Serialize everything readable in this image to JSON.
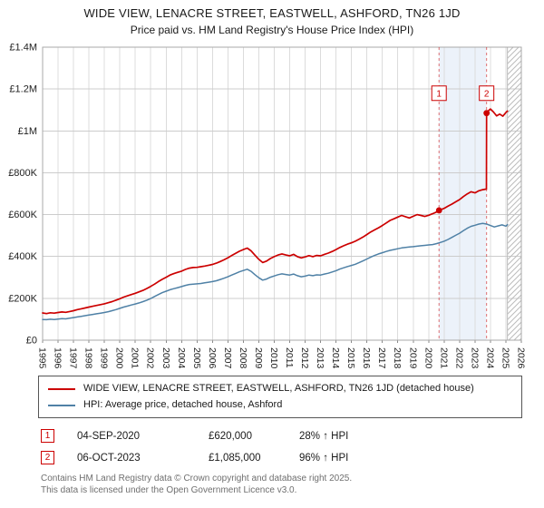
{
  "chart_data": {
    "type": "line",
    "title": "WIDE VIEW, LENACRE STREET, EASTWELL, ASHFORD, TN26 1JD",
    "subtitle": "Price paid vs. HM Land Registry's House Price Index (HPI)",
    "currency": "GBP",
    "values_unit": "thousands_of_pounds",
    "xlim": [
      1995,
      2026
    ],
    "ylim": [
      0,
      1400
    ],
    "grid": true,
    "legend_position": "bottom",
    "x_ticks": [
      1995,
      1996,
      1997,
      1998,
      1999,
      2000,
      2001,
      2002,
      2003,
      2004,
      2005,
      2006,
      2007,
      2008,
      2009,
      2010,
      2011,
      2012,
      2013,
      2014,
      2015,
      2016,
      2017,
      2018,
      2019,
      2020,
      2021,
      2022,
      2023,
      2024,
      2025,
      2026
    ],
    "y_ticks": [
      {
        "v": 0,
        "label": "£0"
      },
      {
        "v": 200,
        "label": "£200K"
      },
      {
        "v": 400,
        "label": "£400K"
      },
      {
        "v": 600,
        "label": "£600K"
      },
      {
        "v": 800,
        "label": "£800K"
      },
      {
        "v": 1000,
        "label": "£1M"
      },
      {
        "v": 1200,
        "label": "£1.2M"
      },
      {
        "v": 1400,
        "label": "£1.4M"
      }
    ],
    "shaded_region": {
      "from": 2020.67,
      "to": 2023.75,
      "color": "#dde8f6"
    },
    "hatched_region": {
      "from": 2025.1,
      "to": 2026
    },
    "sale_markers": [
      {
        "n": "1",
        "x": 2020.67,
        "y": 620,
        "label_y": 1180
      },
      {
        "n": "2",
        "x": 2023.75,
        "y": 1085,
        "label_y": 1180
      }
    ],
    "series": [
      {
        "name": "WIDE VIEW, LENACRE STREET, EASTWELL, ASHFORD, TN26 1JD (detached house)",
        "color": "#cc0000",
        "points": [
          [
            1995,
            130
          ],
          [
            1995.25,
            127
          ],
          [
            1995.5,
            131
          ],
          [
            1995.75,
            129
          ],
          [
            1996,
            132
          ],
          [
            1996.25,
            135
          ],
          [
            1996.5,
            133
          ],
          [
            1996.75,
            137
          ],
          [
            1997,
            141
          ],
          [
            1997.25,
            146
          ],
          [
            1997.5,
            150
          ],
          [
            1997.75,
            154
          ],
          [
            1998,
            158
          ],
          [
            1998.25,
            162
          ],
          [
            1998.5,
            166
          ],
          [
            1998.75,
            170
          ],
          [
            1999,
            174
          ],
          [
            1999.25,
            179
          ],
          [
            1999.5,
            184
          ],
          [
            1999.75,
            191
          ],
          [
            2000,
            198
          ],
          [
            2000.25,
            206
          ],
          [
            2000.5,
            212
          ],
          [
            2000.75,
            218
          ],
          [
            2001,
            224
          ],
          [
            2001.25,
            231
          ],
          [
            2001.5,
            238
          ],
          [
            2001.75,
            247
          ],
          [
            2002,
            257
          ],
          [
            2002.25,
            268
          ],
          [
            2002.5,
            280
          ],
          [
            2002.75,
            291
          ],
          [
            2003,
            301
          ],
          [
            2003.25,
            311
          ],
          [
            2003.5,
            318
          ],
          [
            2003.75,
            324
          ],
          [
            2004,
            330
          ],
          [
            2004.25,
            338
          ],
          [
            2004.5,
            344
          ],
          [
            2004.75,
            347
          ],
          [
            2005,
            348
          ],
          [
            2005.25,
            351
          ],
          [
            2005.5,
            354
          ],
          [
            2005.75,
            358
          ],
          [
            2006,
            362
          ],
          [
            2006.25,
            368
          ],
          [
            2006.5,
            376
          ],
          [
            2006.75,
            384
          ],
          [
            2007,
            394
          ],
          [
            2007.25,
            405
          ],
          [
            2007.5,
            415
          ],
          [
            2007.75,
            425
          ],
          [
            2008,
            433
          ],
          [
            2008.25,
            440
          ],
          [
            2008.5,
            427
          ],
          [
            2008.75,
            406
          ],
          [
            2009,
            386
          ],
          [
            2009.25,
            371
          ],
          [
            2009.5,
            378
          ],
          [
            2009.75,
            390
          ],
          [
            2010,
            399
          ],
          [
            2010.25,
            407
          ],
          [
            2010.5,
            412
          ],
          [
            2010.75,
            407
          ],
          [
            2011,
            403
          ],
          [
            2011.25,
            410
          ],
          [
            2011.5,
            399
          ],
          [
            2011.75,
            393
          ],
          [
            2012,
            398
          ],
          [
            2012.25,
            404
          ],
          [
            2012.5,
            399
          ],
          [
            2012.75,
            405
          ],
          [
            2013,
            403
          ],
          [
            2013.25,
            410
          ],
          [
            2013.5,
            416
          ],
          [
            2013.75,
            424
          ],
          [
            2014,
            433
          ],
          [
            2014.25,
            443
          ],
          [
            2014.5,
            451
          ],
          [
            2014.75,
            459
          ],
          [
            2015,
            465
          ],
          [
            2015.25,
            473
          ],
          [
            2015.5,
            483
          ],
          [
            2015.75,
            493
          ],
          [
            2016,
            505
          ],
          [
            2016.25,
            517
          ],
          [
            2016.5,
            527
          ],
          [
            2016.75,
            537
          ],
          [
            2017,
            548
          ],
          [
            2017.25,
            560
          ],
          [
            2017.5,
            572
          ],
          [
            2017.75,
            580
          ],
          [
            2018,
            588
          ],
          [
            2018.25,
            596
          ],
          [
            2018.5,
            590
          ],
          [
            2018.75,
            584
          ],
          [
            2019,
            592
          ],
          [
            2019.25,
            600
          ],
          [
            2019.5,
            596
          ],
          [
            2019.75,
            591
          ],
          [
            2020,
            597
          ],
          [
            2020.25,
            604
          ],
          [
            2020.5,
            612
          ],
          [
            2020.67,
            620
          ],
          [
            2021,
            630
          ],
          [
            2021.25,
            640
          ],
          [
            2021.5,
            650
          ],
          [
            2021.75,
            661
          ],
          [
            2022,
            672
          ],
          [
            2022.25,
            686
          ],
          [
            2022.5,
            699
          ],
          [
            2022.75,
            709
          ],
          [
            2023,
            704
          ],
          [
            2023.25,
            714
          ],
          [
            2023.5,
            719
          ],
          [
            2023.74,
            722
          ],
          [
            2023.75,
            1085
          ],
          [
            2023.85,
            1095
          ],
          [
            2024,
            1105
          ],
          [
            2024.2,
            1090
          ],
          [
            2024.4,
            1072
          ],
          [
            2024.6,
            1080
          ],
          [
            2024.8,
            1070
          ],
          [
            2025,
            1088
          ],
          [
            2025.1,
            1095
          ]
        ]
      },
      {
        "name": "HPI: Average price, detached house, Ashford",
        "color": "#4f81a6",
        "points": [
          [
            1995,
            99
          ],
          [
            1995.25,
            98
          ],
          [
            1995.5,
            100
          ],
          [
            1995.75,
            99
          ],
          [
            1996,
            101
          ],
          [
            1996.25,
            103
          ],
          [
            1996.5,
            102
          ],
          [
            1996.75,
            105
          ],
          [
            1997,
            108
          ],
          [
            1997.25,
            111
          ],
          [
            1997.5,
            114
          ],
          [
            1997.75,
            117
          ],
          [
            1998,
            120
          ],
          [
            1998.25,
            123
          ],
          [
            1998.5,
            126
          ],
          [
            1998.75,
            129
          ],
          [
            1999,
            132
          ],
          [
            1999.25,
            136
          ],
          [
            1999.5,
            141
          ],
          [
            1999.75,
            146
          ],
          [
            2000,
            152
          ],
          [
            2000.25,
            158
          ],
          [
            2000.5,
            163
          ],
          [
            2000.75,
            168
          ],
          [
            2001,
            173
          ],
          [
            2001.25,
            178
          ],
          [
            2001.5,
            184
          ],
          [
            2001.75,
            191
          ],
          [
            2002,
            199
          ],
          [
            2002.25,
            209
          ],
          [
            2002.5,
            218
          ],
          [
            2002.75,
            227
          ],
          [
            2003,
            234
          ],
          [
            2003.25,
            241
          ],
          [
            2003.5,
            246
          ],
          [
            2003.75,
            251
          ],
          [
            2004,
            256
          ],
          [
            2004.25,
            262
          ],
          [
            2004.5,
            266
          ],
          [
            2004.75,
            268
          ],
          [
            2005,
            269
          ],
          [
            2005.25,
            271
          ],
          [
            2005.5,
            274
          ],
          [
            2005.75,
            277
          ],
          [
            2006,
            280
          ],
          [
            2006.25,
            284
          ],
          [
            2006.5,
            290
          ],
          [
            2006.75,
            296
          ],
          [
            2007,
            303
          ],
          [
            2007.25,
            311
          ],
          [
            2007.5,
            319
          ],
          [
            2007.75,
            327
          ],
          [
            2008,
            333
          ],
          [
            2008.25,
            339
          ],
          [
            2008.5,
            329
          ],
          [
            2008.75,
            313
          ],
          [
            2009,
            298
          ],
          [
            2009.25,
            287
          ],
          [
            2009.5,
            292
          ],
          [
            2009.75,
            301
          ],
          [
            2010,
            307
          ],
          [
            2010.25,
            313
          ],
          [
            2010.5,
            317
          ],
          [
            2010.75,
            314
          ],
          [
            2011,
            311
          ],
          [
            2011.25,
            316
          ],
          [
            2011.5,
            308
          ],
          [
            2011.75,
            303
          ],
          [
            2012,
            306
          ],
          [
            2012.25,
            311
          ],
          [
            2012.5,
            308
          ],
          [
            2012.75,
            312
          ],
          [
            2013,
            311
          ],
          [
            2013.25,
            316
          ],
          [
            2013.5,
            320
          ],
          [
            2013.75,
            326
          ],
          [
            2014,
            332
          ],
          [
            2014.25,
            340
          ],
          [
            2014.5,
            346
          ],
          [
            2014.75,
            352
          ],
          [
            2015,
            357
          ],
          [
            2015.25,
            363
          ],
          [
            2015.5,
            371
          ],
          [
            2015.75,
            379
          ],
          [
            2016,
            388
          ],
          [
            2016.25,
            397
          ],
          [
            2016.5,
            405
          ],
          [
            2016.75,
            412
          ],
          [
            2017,
            418
          ],
          [
            2017.25,
            424
          ],
          [
            2017.5,
            429
          ],
          [
            2017.75,
            433
          ],
          [
            2018,
            437
          ],
          [
            2018.25,
            441
          ],
          [
            2018.5,
            443
          ],
          [
            2018.75,
            445
          ],
          [
            2019,
            447
          ],
          [
            2019.25,
            449
          ],
          [
            2019.5,
            451
          ],
          [
            2019.75,
            453
          ],
          [
            2020,
            455
          ],
          [
            2020.25,
            457
          ],
          [
            2020.5,
            461
          ],
          [
            2020.75,
            467
          ],
          [
            2021,
            473
          ],
          [
            2021.25,
            481
          ],
          [
            2021.5,
            491
          ],
          [
            2021.75,
            501
          ],
          [
            2022,
            511
          ],
          [
            2022.25,
            523
          ],
          [
            2022.5,
            535
          ],
          [
            2022.75,
            544
          ],
          [
            2023,
            549
          ],
          [
            2023.25,
            555
          ],
          [
            2023.5,
            558
          ],
          [
            2023.75,
            555
          ],
          [
            2024,
            548
          ],
          [
            2024.25,
            541
          ],
          [
            2024.5,
            546
          ],
          [
            2024.75,
            551
          ],
          [
            2025,
            545
          ],
          [
            2025.1,
            552
          ]
        ]
      }
    ]
  },
  "annotations": [
    {
      "n": "1",
      "date": "04-SEP-2020",
      "price": "£620,000",
      "hpi": "28% ↑ HPI"
    },
    {
      "n": "2",
      "date": "06-OCT-2023",
      "price": "£1,085,000",
      "hpi": "96% ↑ HPI"
    }
  ],
  "footer": {
    "line1": "Contains HM Land Registry data © Crown copyright and database right 2025.",
    "line2": "This data is licensed under the Open Government Licence v3.0."
  }
}
